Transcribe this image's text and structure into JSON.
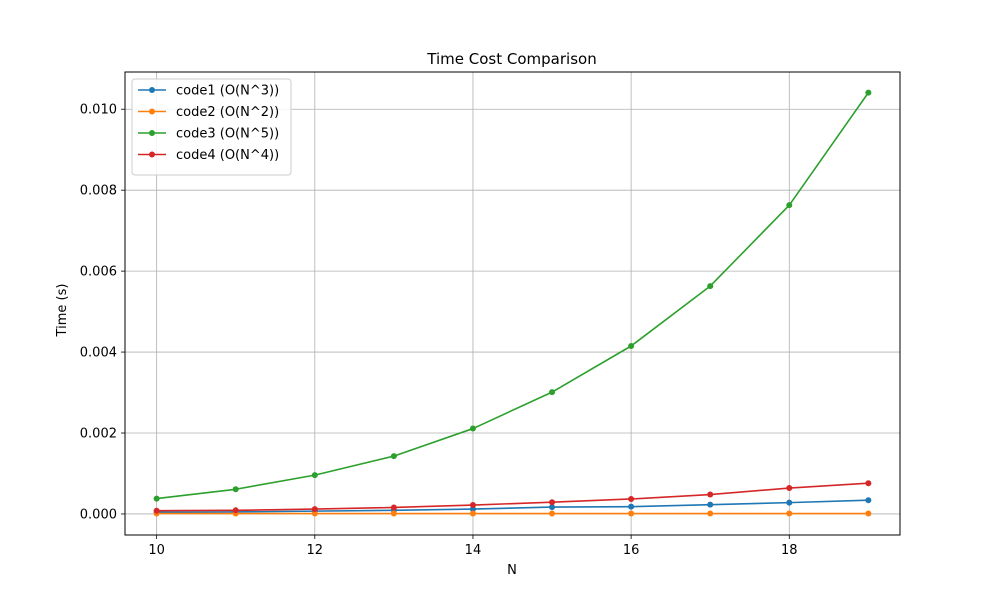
{
  "chart_data": {
    "type": "line",
    "title": "Time Cost Comparison",
    "xlabel": "N",
    "ylabel": "Time (s)",
    "x": [
      10,
      11,
      12,
      13,
      14,
      15,
      16,
      17,
      18,
      19
    ],
    "xlim": [
      9.6,
      19.4
    ],
    "ylim": [
      -0.00052,
      0.01092
    ],
    "xticks": [
      10,
      12,
      14,
      16,
      18
    ],
    "xtick_labels": [
      "10",
      "12",
      "14",
      "16",
      "18"
    ],
    "yticks": [
      0,
      0.002,
      0.004,
      0.006,
      0.008,
      0.01
    ],
    "ytick_labels": [
      "0.000",
      "0.002",
      "0.004",
      "0.006",
      "0.008",
      "0.010"
    ],
    "grid": true,
    "legend_position": "top-left",
    "series": [
      {
        "name": "code1 (O(N^3))",
        "color": "#1f77b4",
        "values": [
          4e-05,
          5e-05,
          7e-05,
          9e-05,
          0.00012,
          0.00017,
          0.00018,
          0.00023,
          0.00028,
          0.00034
        ]
      },
      {
        "name": "code2 (O(N^2))",
        "color": "#ff7f0e",
        "values": [
          1e-05,
          1e-05,
          1e-05,
          1e-05,
          1e-05,
          1e-05,
          1e-05,
          1e-05,
          1e-05,
          1e-05
        ]
      },
      {
        "name": "code3 (O(N^5))",
        "color": "#2ca02c",
        "values": [
          0.00038,
          0.00061,
          0.00096,
          0.00143,
          0.00211,
          0.00301,
          0.00415,
          0.00563,
          0.00763,
          0.01041
        ]
      },
      {
        "name": "code4 (O(N^4))",
        "color": "#d62728",
        "values": [
          8e-05,
          9e-05,
          0.00012,
          0.00016,
          0.00022,
          0.00029,
          0.00037,
          0.00048,
          0.00064,
          0.00076
        ]
      }
    ]
  }
}
